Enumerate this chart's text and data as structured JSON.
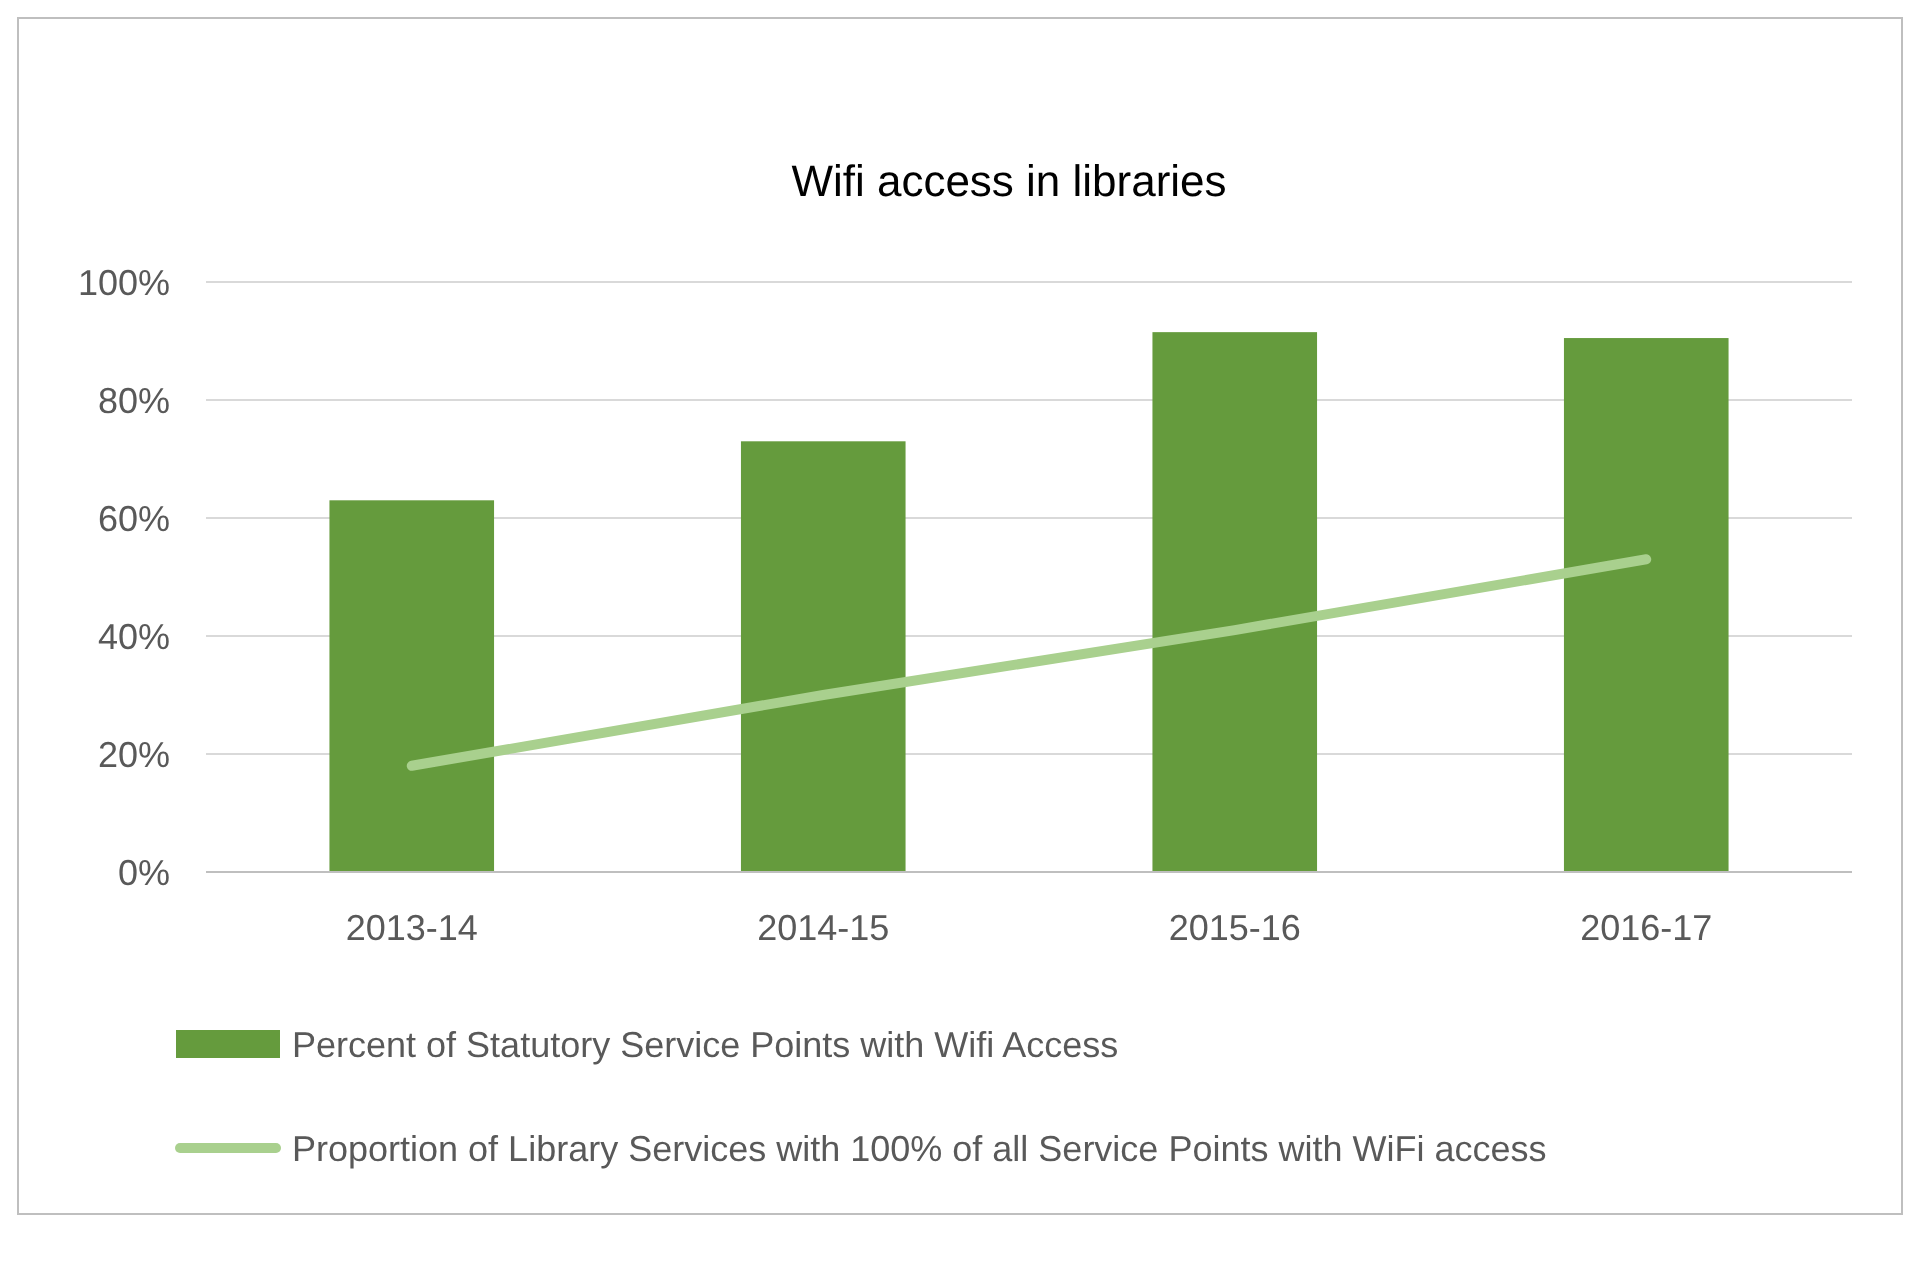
{
  "chart_data": {
    "type": "bar",
    "title": "Wifi access in libraries",
    "categories": [
      "2013-14",
      "2014-15",
      "2015-16",
      "2016-17"
    ],
    "series": [
      {
        "name": "Percent of Statutory Service Points with Wifi Access",
        "color": "#659b3d",
        "values": [
          63,
          73,
          91.5,
          90.5
        ]
      },
      {
        "name": "Proportion of Library Services with 100% of all Service Points with WiFi access",
        "type": "line",
        "color": "#a9d08e",
        "values": [
          18,
          30,
          41,
          53
        ]
      }
    ],
    "ylim": [
      0,
      100
    ],
    "yticks": [
      {
        "value": 0,
        "label": "0%"
      },
      {
        "value": 20,
        "label": "20%"
      },
      {
        "value": 40,
        "label": "40%"
      },
      {
        "value": 60,
        "label": "60%"
      },
      {
        "value": 80,
        "label": "80%"
      },
      {
        "value": 100,
        "label": "100%"
      }
    ],
    "grid": "y",
    "legend": "bottom",
    "marker": "none",
    "line_style": "solid"
  }
}
